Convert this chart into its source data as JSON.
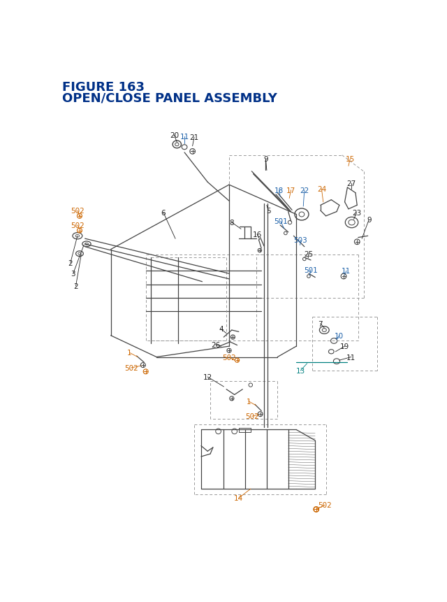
{
  "title_line1": "FIGURE 163",
  "title_line2": "OPEN/CLOSE PANEL ASSEMBLY",
  "title_color": "#003087",
  "title_fontsize": 13,
  "bg_color": "#ffffff",
  "diagram_color": "#444444",
  "dashed_color": "#999999",
  "label_black": "#222222",
  "label_blue": "#1a5fa8",
  "label_orange": "#cc6600",
  "label_teal": "#008080"
}
